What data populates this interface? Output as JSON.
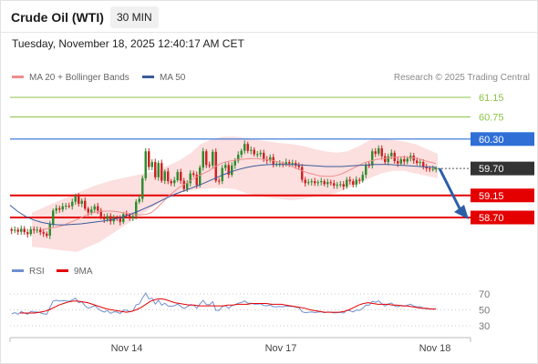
{
  "header": {
    "instrument": "Crude Oil (WTI)",
    "timeframe": "30 MIN",
    "datetime": "Tuesday, November 18, 2025 12:40:17 AM CET"
  },
  "legend": {
    "ma20_label": "MA 20 + Bollinger Bands",
    "ma50_label": "MA 50",
    "rsi_label": "RSI",
    "rsi_ma_label": "9MA",
    "ma20_color": "#f08d8d",
    "ma50_color": "#3a5b9a"
  },
  "credit": "Research © 2025 Trading Central",
  "colors": {
    "resistance_green": "#8bc34a",
    "pivot_blue": "#2f6fd6",
    "support_red": "#e50000",
    "candle_green": "#2e8b2e",
    "candle_red": "#cc2222",
    "bollinger_fill": "#fbd9d9",
    "rsi_line": "#6f8fd0",
    "arrow": "#2b5fa8",
    "last_price_tag": "#333333"
  },
  "chart_data": {
    "type": "candlestick",
    "x_ticks": [
      "Nov 14",
      "Nov 17",
      "Nov 18"
    ],
    "levels": [
      {
        "value": 61.15,
        "label": "61.15",
        "kind": "resistance",
        "tag": false
      },
      {
        "value": 60.75,
        "label": "60.75",
        "kind": "resistance",
        "tag": false
      },
      {
        "value": 60.3,
        "label": "60.30",
        "kind": "pivot",
        "tag": true
      },
      {
        "value": 59.7,
        "label": "59.70",
        "kind": "last",
        "tag": true
      },
      {
        "value": 59.15,
        "label": "59.15",
        "kind": "support",
        "tag": true
      },
      {
        "value": 58.7,
        "label": "58.70",
        "kind": "support",
        "tag": true
      }
    ],
    "price_close": [
      58.43,
      58.45,
      58.41,
      58.47,
      58.4,
      58.36,
      58.46,
      58.44,
      58.45,
      58.4,
      58.37,
      58.33,
      58.56,
      58.84,
      58.89,
      58.86,
      58.93,
      58.94,
      58.93,
      59.02,
      59.13,
      58.98,
      59.04,
      58.88,
      58.8,
      58.86,
      58.93,
      58.84,
      58.71,
      58.66,
      58.73,
      58.62,
      58.69,
      58.68,
      58.61,
      58.77,
      58.75,
      58.69,
      58.73,
      59.02,
      59.08,
      59.5,
      60.05,
      59.73,
      59.83,
      59.52,
      59.81,
      59.45,
      59.64,
      59.44,
      59.4,
      59.46,
      59.63,
      59.45,
      59.28,
      59.4,
      59.6,
      59.57,
      59.36,
      59.72,
      60.05,
      59.77,
      59.76,
      60.04,
      59.45,
      59.44,
      59.71,
      59.77,
      59.57,
      59.76,
      59.86,
      59.98,
      60.06,
      60.2,
      60.06,
      60.08,
      59.99,
      59.99,
      60.02,
      59.89,
      59.86,
      59.93,
      59.79,
      59.79,
      59.8,
      59.79,
      59.83,
      59.8,
      59.81,
      59.76,
      59.73,
      59.47,
      59.4,
      59.42,
      59.44,
      59.4,
      59.42,
      59.44,
      59.38,
      59.42,
      59.4,
      59.35,
      59.37,
      59.38,
      59.33,
      59.47,
      59.44,
      59.37,
      59.47,
      59.45,
      59.57,
      59.77,
      59.76,
      60.05,
      60.0,
      60.11,
      59.95,
      59.83,
      59.95,
      60.02,
      59.85,
      59.8,
      59.89,
      59.84,
      59.9,
      59.96,
      59.86,
      59.81,
      59.83,
      59.73,
      59.7,
      59.69,
      59.69,
      59.7
    ],
    "ma20": [
      58.45,
      58.47,
      58.49,
      58.51,
      58.55,
      58.6,
      58.65,
      58.7,
      58.76,
      58.8,
      58.82,
      58.83,
      58.83,
      58.82,
      58.8,
      58.78,
      58.76,
      58.75,
      58.76,
      58.8,
      58.9,
      59.02,
      59.14,
      59.24,
      59.33,
      59.4,
      59.47,
      59.54,
      59.6,
      59.66,
      59.74,
      59.8,
      59.84,
      59.86,
      59.88,
      59.89,
      59.9,
      59.9,
      59.89,
      59.88,
      59.86,
      59.83,
      59.79,
      59.75,
      59.7,
      59.65,
      59.61,
      59.58,
      59.55,
      59.54,
      59.54,
      59.56,
      59.6,
      59.66,
      59.72,
      59.78,
      59.83,
      59.86,
      59.89,
      59.9,
      59.92,
      59.93,
      59.94,
      59.93,
      59.92,
      59.9,
      59.86,
      59.83,
      59.8
    ],
    "ma50": [
      58.95,
      58.82,
      58.72,
      58.65,
      58.6,
      58.57,
      58.55,
      58.55,
      58.56,
      58.57,
      58.59,
      58.61,
      58.63,
      58.66,
      58.7,
      58.75,
      58.81,
      58.88,
      58.95,
      59.03,
      59.11,
      59.18,
      59.24,
      59.3,
      59.36,
      59.43,
      59.5,
      59.57,
      59.63,
      59.68,
      59.72,
      59.75,
      59.77,
      59.78,
      59.78,
      59.78,
      59.78,
      59.77,
      59.76,
      59.75,
      59.74,
      59.74,
      59.74,
      59.75,
      59.76,
      59.77,
      59.78,
      59.78,
      59.78,
      59.77,
      59.76,
      59.75,
      59.74,
      59.73,
      59.72
    ],
    "bollinger_upper": [
      58.8,
      58.9,
      59.0,
      59.1,
      59.2,
      59.3,
      59.38,
      59.45,
      59.5,
      59.55,
      59.6,
      59.65,
      59.75,
      59.85,
      60.0,
      60.2,
      60.3,
      60.35,
      60.35,
      60.32,
      60.28,
      60.25,
      60.22,
      60.2,
      60.16,
      60.1,
      60.05,
      60.02,
      60.05,
      60.15,
      60.28,
      60.3,
      60.28,
      60.25,
      60.2,
      60.1,
      60.0
    ],
    "bollinger_lower": [
      58.1,
      58.08,
      58.05,
      58.02,
      58.0,
      58.1,
      58.2,
      58.35,
      58.5,
      58.65,
      58.8,
      58.95,
      59.1,
      59.2,
      59.25,
      59.28,
      59.3,
      59.3,
      59.28,
      59.2,
      59.15,
      59.1,
      59.08,
      59.05,
      59.08,
      59.12,
      59.15,
      59.2,
      59.3,
      59.4,
      59.5,
      59.6,
      59.65,
      59.65,
      59.6,
      59.55,
      59.5
    ],
    "rsi": [
      45.0,
      46.6,
      44.4,
      48.0,
      46.0,
      44.5,
      48.1,
      47.2,
      47.2,
      46.5,
      45.0,
      44.5,
      53.1,
      61.2,
      62.1,
      61.0,
      61.6,
      61.3,
      60.6,
      62.5,
      64.6,
      58.9,
      60.2,
      55.0,
      52.2,
      53.4,
      55.4,
      51.8,
      48.8,
      47.1,
      49.1,
      45.5,
      47.6,
      47.3,
      45.3,
      49.7,
      49.6,
      47.7,
      48.8,
      56.4,
      57.3,
      65.2,
      71.1,
      63.6,
      64.6,
      57.2,
      62.1,
      56.0,
      58.3,
      54.8,
      54.4,
      55.2,
      57.4,
      54.2,
      51.5,
      53.8,
      56.6,
      56.0,
      52.1,
      57.6,
      61.9,
      56.6,
      56.3,
      60.3,
      49.3,
      49.3,
      54.2,
      55.1,
      51.8,
      55.3,
      56.6,
      58.3,
      59.3,
      61.2,
      58.3,
      58.5,
      57.2,
      57.1,
      57.5,
      55.5,
      55.1,
      56.1,
      53.9,
      53.9,
      54.2,
      53.9,
      54.7,
      54.2,
      54.4,
      53.4,
      52.8,
      47.6,
      46.4,
      47.0,
      47.4,
      46.6,
      47.2,
      47.6,
      46.5,
      47.4,
      47.0,
      46.1,
      46.6,
      46.9,
      45.9,
      49.5,
      48.9,
      47.4,
      49.8,
      49.3,
      52.0,
      56.1,
      55.7,
      60.9,
      59.5,
      61.3,
      57.5,
      54.8,
      57.3,
      58.7,
      54.9,
      53.8,
      55.8,
      54.6,
      56.0,
      57.1,
      54.8,
      53.6,
      54.1,
      51.9,
      51.3,
      51.1,
      51.1,
      51.3
    ],
    "rsi_ma": [
      46,
      46,
      46,
      46,
      47,
      48,
      50,
      53,
      56,
      58,
      60,
      61,
      61,
      60,
      59,
      57,
      55,
      53,
      51,
      50,
      49,
      48,
      47,
      48,
      50,
      53,
      57,
      61,
      63,
      64,
      63,
      61,
      59,
      58,
      57,
      56,
      56,
      55,
      55,
      55,
      55,
      55,
      55,
      56,
      56,
      57,
      57,
      57,
      58,
      58,
      58,
      58,
      57,
      57,
      57,
      56,
      55,
      54,
      53,
      52,
      50,
      49,
      48,
      47,
      47,
      47,
      47,
      48,
      50,
      53,
      56,
      58,
      59,
      58,
      57,
      57,
      57,
      56,
      56,
      55,
      55,
      54,
      53,
      52,
      52,
      51,
      51
    ],
    "rsi_levels": [
      70,
      50,
      30
    ],
    "forecast_arrow": {
      "from": 59.7,
      "to": 58.7
    }
  }
}
